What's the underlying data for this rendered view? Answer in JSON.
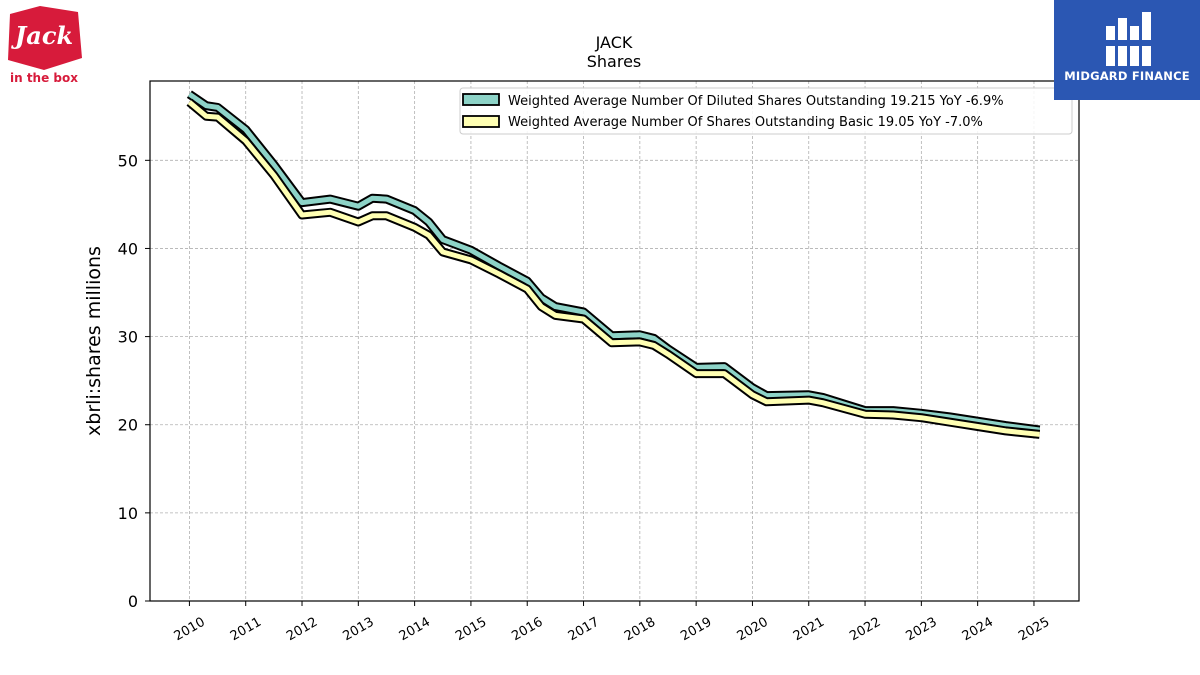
{
  "logos": {
    "left_word": "Jack",
    "left_sub": "in the box",
    "right_brand": "MIDGARD FINANCE"
  },
  "chart_data": {
    "type": "area",
    "title": "JACK",
    "subtitle": "Shares",
    "xlabel": "",
    "ylabel": "xbrli:shares millions",
    "ylim": [
      0,
      59
    ],
    "yticks": [
      0,
      10,
      20,
      30,
      40,
      50
    ],
    "xticks": [
      "2010",
      "2011",
      "2012",
      "2013",
      "2014",
      "2015",
      "2016",
      "2017",
      "2018",
      "2019",
      "2020",
      "2021",
      "2022",
      "2023",
      "2024",
      "2025"
    ],
    "xlim": [
      2009.3,
      2025.8
    ],
    "grid": true,
    "legend_position": "top-right",
    "series": [
      {
        "name": "Weighted Average Number Of Diluted Shares Outstanding  19.215 YoY -6.9%",
        "color": "#8dd3c7",
        "x": [
          2010.0,
          2010.3,
          2010.5,
          2011.0,
          2011.5,
          2012.0,
          2012.5,
          2013.0,
          2013.25,
          2013.5,
          2014.0,
          2014.25,
          2014.5,
          2015.0,
          2015.5,
          2016.0,
          2016.25,
          2016.5,
          2017.0,
          2017.5,
          2018.0,
          2018.25,
          2018.5,
          2019.0,
          2019.5,
          2020.0,
          2020.25,
          2021.0,
          2021.25,
          2022.0,
          2022.5,
          2023.0,
          2023.5,
          2024.0,
          2024.5,
          2025.1
        ],
        "values": [
          57.5,
          56.2,
          56.0,
          53.5,
          49.5,
          45.2,
          45.6,
          44.8,
          45.7,
          45.6,
          44.3,
          43.0,
          41.0,
          39.8,
          38.0,
          36.3,
          34.4,
          33.4,
          32.8,
          30.1,
          30.2,
          29.8,
          28.6,
          26.5,
          26.6,
          24.2,
          23.3,
          23.4,
          23.1,
          21.6,
          21.6,
          21.3,
          20.9,
          20.4,
          19.9,
          19.4
        ]
      },
      {
        "name": "Weighted Average Number Of Shares Outstanding Basic  19.05 YoY -7.0%",
        "color": "#ffffb3",
        "x": [
          2010.0,
          2010.3,
          2010.5,
          2011.0,
          2011.5,
          2012.0,
          2012.5,
          2013.0,
          2013.25,
          2013.5,
          2014.0,
          2014.25,
          2014.5,
          2015.0,
          2015.5,
          2016.0,
          2016.25,
          2016.5,
          2017.0,
          2017.5,
          2018.0,
          2018.25,
          2018.5,
          2019.0,
          2019.5,
          2020.0,
          2020.25,
          2021.0,
          2021.25,
          2022.0,
          2022.5,
          2023.0,
          2023.5,
          2024.0,
          2024.5,
          2025.1
        ],
        "values": [
          56.6,
          55.0,
          54.9,
          52.2,
          48.3,
          43.8,
          44.1,
          43.0,
          43.7,
          43.7,
          42.4,
          41.5,
          39.6,
          38.7,
          37.1,
          35.4,
          33.4,
          32.4,
          32.0,
          29.3,
          29.4,
          29.0,
          28.0,
          25.8,
          25.8,
          23.4,
          22.6,
          22.8,
          22.5,
          21.2,
          21.1,
          20.8,
          20.3,
          19.8,
          19.3,
          18.9
        ]
      }
    ]
  }
}
